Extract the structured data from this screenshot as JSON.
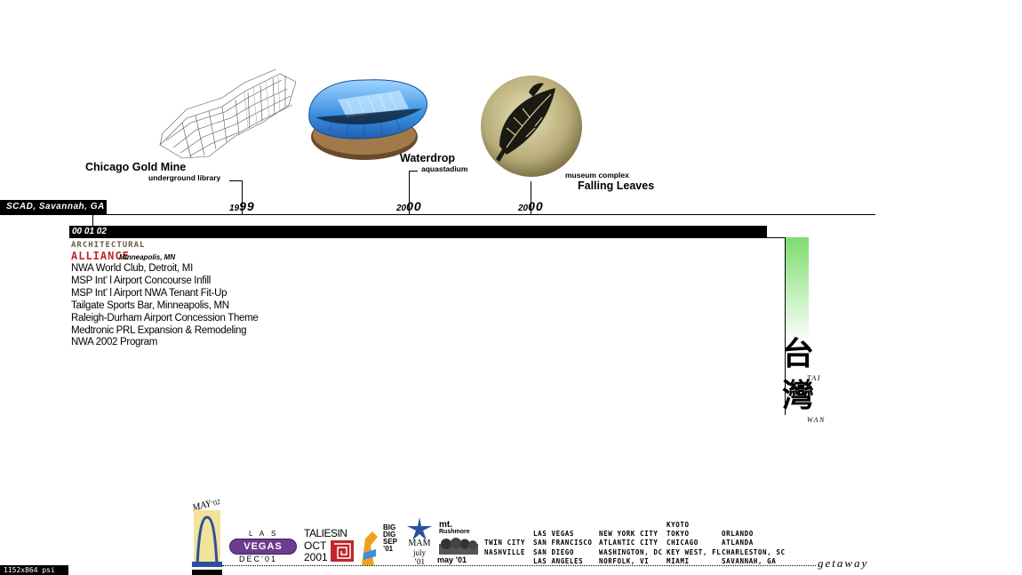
{
  "projects": [
    {
      "title": "Chicago Gold Mine",
      "subtitle": "underground library",
      "year_century": "19",
      "year_short": "99"
    },
    {
      "title": "Waterdrop",
      "subtitle": "aquastadium",
      "year_century": "20",
      "year_short": "00"
    },
    {
      "title": "Falling Leaves",
      "subtitle": "museum complex",
      "year_century": "20",
      "year_short": "00"
    }
  ],
  "scad_label": "SCAD, Savannah, GA",
  "bar_label": "00 01 02",
  "alliance": {
    "line1": "ARCHITECTURAL",
    "line2": "ALLIANCE",
    "location": "Minneapolis, MN",
    "projects": [
      "NWA World Club, Detroit, MI",
      "MSP Int’ l Airport Concourse Infill",
      "MSP Int’ l Airport NWA Tenant Fit-Up",
      "Tailgate Sports Bar, Minneapolis, MN",
      "Raleigh-Durham Airport Concession Theme",
      "Medtronic PRL Expansion & Remodeling",
      "NWA 2002 Program"
    ]
  },
  "taiwan": {
    "char1": "台",
    "char2": "灣",
    "roman1": "TAI",
    "roman2": "WAN"
  },
  "trips": {
    "stlouis": {
      "top": "MAY",
      "suffix": "’02"
    },
    "vegas": {
      "top": "L A S",
      "mid": "VEGAS",
      "bottom": "DEC’01"
    },
    "taliesin": {
      "top": "TALIESIN",
      "mid": "OCT",
      "year": "2001"
    },
    "bigdig": {
      "line1": "BIG",
      "line2": "DIG",
      "line3": "SEP",
      "line4": "’01"
    },
    "mam": {
      "line1": "MAM",
      "line2": "july",
      "line3": "’01"
    },
    "rushmore": {
      "line1": "mt.",
      "line2": "Rushmore",
      "line3": "may ’01"
    }
  },
  "cities": [
    [
      "",
      "",
      "TWIN CITY",
      "NASHVILLE"
    ],
    [
      "",
      "LAS VEGAS",
      "SAN FRANCISCO",
      "SAN DIEGO",
      "LAS ANGELES"
    ],
    [
      "",
      "NEW YORK CITY",
      "ATLANTIC CITY",
      "WASHINGTON, DC",
      "NORFOLK, VI"
    ],
    [
      "KYOTO",
      "TOKYO",
      "CHICAGO",
      "KEY WEST, FL",
      "MIAMI"
    ],
    [
      "",
      "ORLANDO",
      "ATLANDA",
      "CHARLESTON, SC",
      "SAVANNAH, GA"
    ]
  ],
  "getaway": "getaway",
  "resolution_note": "1152x864 psi",
  "colors": {
    "green": "#7fdc6e",
    "red": "#c0262d",
    "vegas_purple": "#6b3d8c",
    "blue": "#3a8fe0"
  }
}
